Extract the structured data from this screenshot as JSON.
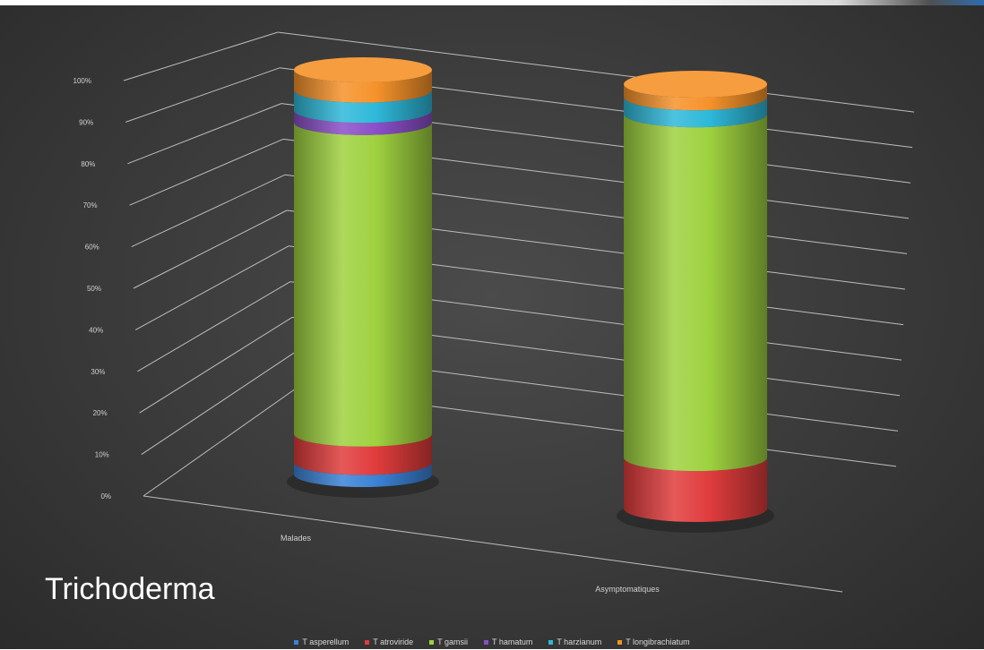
{
  "title_text": "Trichoderma",
  "chart_data": {
    "type": "bar",
    "style": "3d-stacked-cylinder-100-percent",
    "categories": [
      "Malades",
      "Asymptomatiques"
    ],
    "y_ticks": [
      "0%",
      "10%",
      "20%",
      "30%",
      "40%",
      "50%",
      "60%",
      "70%",
      "80%",
      "90%",
      "100%"
    ],
    "ylim": [
      0,
      100
    ],
    "legend_position": "bottom",
    "series": [
      {
        "name": "T asperellum",
        "color": "#3b82d6",
        "values": [
          3,
          0
        ]
      },
      {
        "name": "T atroviride",
        "color": "#e03c3c",
        "values": [
          7,
          12
        ]
      },
      {
        "name": "T gamsii",
        "color": "#9ed13f",
        "values": [
          77,
          81
        ]
      },
      {
        "name": "T hamatum",
        "color": "#8a4fc8",
        "values": [
          3,
          0
        ]
      },
      {
        "name": "T harzianum",
        "color": "#2eb8d9",
        "values": [
          5,
          4
        ]
      },
      {
        "name": "T longibrachiatum",
        "color": "#f5922a",
        "values": [
          5,
          3
        ]
      }
    ]
  }
}
